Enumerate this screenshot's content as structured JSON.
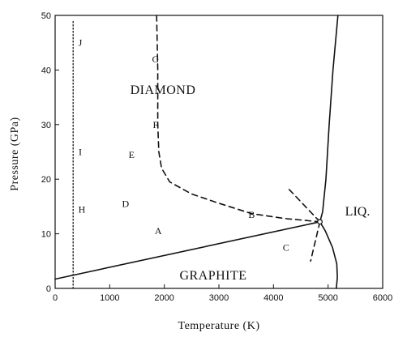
{
  "chart_data": {
    "type": "line",
    "title": "",
    "xlabel": "Temperature (K)",
    "ylabel": "Pressure (GPa)",
    "xlim": [
      0,
      6000
    ],
    "ylim": [
      0,
      50
    ],
    "xticks": [
      0,
      1000,
      2000,
      3000,
      4000,
      5000,
      6000
    ],
    "yticks": [
      0,
      10,
      20,
      30,
      40,
      50
    ],
    "grid": false,
    "series": [
      {
        "style": "solid",
        "points": [
          [
            0,
            1.7
          ],
          [
            4850,
            12.2
          ]
        ]
      },
      {
        "style": "solid",
        "points": [
          [
            4850,
            12.2
          ],
          [
            4900,
            14
          ],
          [
            4960,
            20
          ],
          [
            5020,
            30
          ],
          [
            5090,
            40
          ],
          [
            5180,
            50
          ]
        ]
      },
      {
        "style": "solid",
        "points": [
          [
            4850,
            12.2
          ],
          [
            4950,
            10.5
          ],
          [
            5080,
            7.5
          ],
          [
            5160,
            4.5
          ],
          [
            5170,
            2
          ],
          [
            5150,
            0
          ]
        ]
      },
      {
        "style": "dashed",
        "points": [
          [
            1860,
            50
          ],
          [
            1880,
            40
          ],
          [
            1880,
            30
          ],
          [
            1900,
            25
          ],
          [
            1950,
            22
          ],
          [
            2100,
            19.5
          ],
          [
            2500,
            17.3
          ],
          [
            3000,
            15.6
          ],
          [
            3600,
            13.7
          ],
          [
            4200,
            12.8
          ],
          [
            4850,
            12.2
          ]
        ]
      },
      {
        "style": "dashed",
        "points": [
          [
            4850,
            12.2
          ],
          [
            4680,
            5
          ]
        ]
      },
      {
        "style": "dashed",
        "points": [
          [
            4850,
            12.2
          ],
          [
            4250,
            18.5
          ]
        ]
      },
      {
        "style": "dotted",
        "points": [
          [
            330,
            0
          ],
          [
            330,
            49
          ]
        ]
      }
    ],
    "triple_point": [
      4850,
      12.2
    ],
    "region_labels": [
      "DIAMOND",
      "GRAPHITE",
      "LIQ."
    ],
    "point_labels": [
      {
        "text": "J",
        "x": 460,
        "y": 45
      },
      {
        "text": "G",
        "x": 1840,
        "y": 42
      },
      {
        "text": "F",
        "x": 1840,
        "y": 30
      },
      {
        "text": "I",
        "x": 460,
        "y": 25
      },
      {
        "text": "E",
        "x": 1400,
        "y": 24.5
      },
      {
        "text": "D",
        "x": 1290,
        "y": 15.5
      },
      {
        "text": "H",
        "x": 490,
        "y": 14.5
      },
      {
        "text": "B",
        "x": 3600,
        "y": 13.5
      },
      {
        "text": "A",
        "x": 1890,
        "y": 10.5
      },
      {
        "text": "C",
        "x": 4230,
        "y": 7.5
      }
    ]
  }
}
